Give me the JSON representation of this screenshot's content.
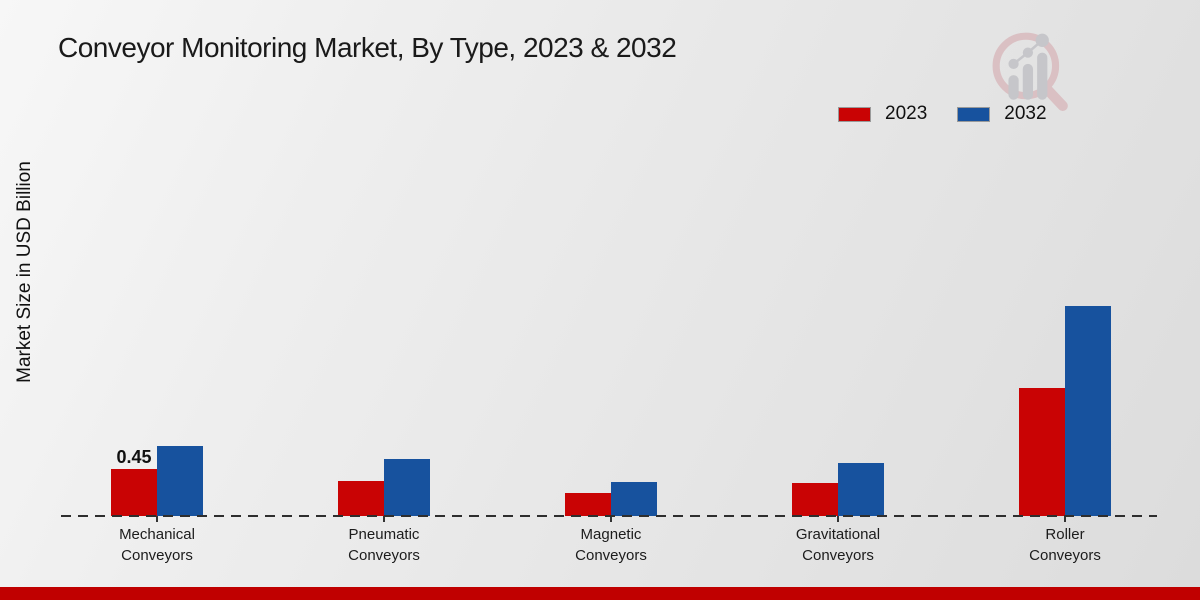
{
  "header": {
    "title": "Conveyor Monitoring Market, By Type, 2023 & 2032"
  },
  "axes": {
    "y_label": "Market Size in USD Billion"
  },
  "legend": {
    "items": [
      {
        "label": "2023",
        "color": "#c90304"
      },
      {
        "label": "2032",
        "color": "#17529e"
      }
    ]
  },
  "watermark": {
    "icon": "magnifier-bar-chart-logo"
  },
  "colors": {
    "background": "#eaeaea",
    "series_2023_red": "#c90304",
    "series_2032_blue": "#17529e",
    "baseline": "#2e2e2e",
    "bottom_stripe": "#c00000"
  },
  "chart_data": {
    "type": "bar",
    "title": "Conveyor Monitoring Market, By Type, 2023 & 2032",
    "xlabel": "",
    "ylabel": "Market Size in USD Billion",
    "categories": [
      "Mechanical Conveyors",
      "Pneumatic Conveyors",
      "Magnetic Conveyors",
      "Gravitational Conveyors",
      "Roller Conveyors"
    ],
    "series": [
      {
        "name": "2023",
        "color": "#c90304",
        "values": [
          0.45,
          0.34,
          0.22,
          0.32,
          1.23
        ]
      },
      {
        "name": "2032",
        "color": "#17529e",
        "values": [
          0.67,
          0.55,
          0.33,
          0.51,
          2.01
        ]
      }
    ],
    "data_labels": [
      {
        "series": "2023",
        "category_index": 0,
        "text": "0.45"
      }
    ],
    "ylim": [
      0,
      2.2
    ],
    "grid": false,
    "legend_position": "top-right",
    "baseline_style": "dashed",
    "y_axis_ticks_visible": false
  }
}
